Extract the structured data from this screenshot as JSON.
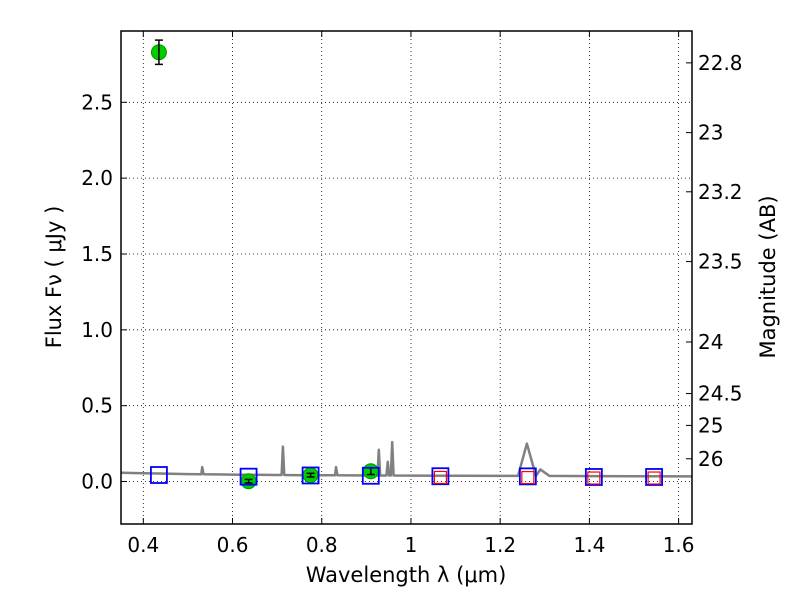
{
  "chart_data": {
    "type": "scatter",
    "xlabel": "Wavelength  λ (μm)",
    "ylabel": "Flux  Fν  ( μJy )",
    "ylabel_right": "Magnitude (AB)",
    "xlim": [
      0.35,
      1.63
    ],
    "ylim": [
      -0.28,
      2.97
    ],
    "grid": true,
    "x_ticks": [
      {
        "value": 0.4,
        "label": "0.4"
      },
      {
        "value": 0.6,
        "label": "0.6"
      },
      {
        "value": 0.8,
        "label": "0.8"
      },
      {
        "value": 1.0,
        "label": "1"
      },
      {
        "value": 1.2,
        "label": "1.2"
      },
      {
        "value": 1.4,
        "label": "1.4"
      },
      {
        "value": 1.6,
        "label": "1.6"
      }
    ],
    "y_ticks": [
      {
        "value": 0.0,
        "label": "0.0"
      },
      {
        "value": 0.5,
        "label": "0.5"
      },
      {
        "value": 1.0,
        "label": "1.0"
      },
      {
        "value": 1.5,
        "label": "1.5"
      },
      {
        "value": 2.0,
        "label": "2.0"
      },
      {
        "value": 2.5,
        "label": "2.5"
      }
    ],
    "right_ticks": [
      {
        "flux": 2.76,
        "label": "22.8"
      },
      {
        "flux": 2.3,
        "label": "23"
      },
      {
        "flux": 1.91,
        "label": "23.2"
      },
      {
        "flux": 1.45,
        "label": "23.5"
      },
      {
        "flux": 0.92,
        "label": "24"
      },
      {
        "flux": 0.58,
        "label": "24.5"
      },
      {
        "flux": 0.37,
        "label": "25"
      },
      {
        "flux": 0.15,
        "label": "26"
      }
    ],
    "series": [
      {
        "kind": "model_spectrum",
        "color": "#808080",
        "points": [
          [
            0.35,
            0.058
          ],
          [
            0.4,
            0.055
          ],
          [
            0.45,
            0.052
          ],
          [
            0.5,
            0.049
          ],
          [
            0.53,
            0.048
          ],
          [
            0.532,
            0.095
          ],
          [
            0.535,
            0.048
          ],
          [
            0.58,
            0.046
          ],
          [
            0.62,
            0.045
          ],
          [
            0.7,
            0.043
          ],
          [
            0.71,
            0.043
          ],
          [
            0.713,
            0.23
          ],
          [
            0.716,
            0.043
          ],
          [
            0.76,
            0.042
          ],
          [
            0.8,
            0.041
          ],
          [
            0.83,
            0.041
          ],
          [
            0.832,
            0.095
          ],
          [
            0.835,
            0.041
          ],
          [
            0.9,
            0.04
          ],
          [
            0.925,
            0.04
          ],
          [
            0.928,
            0.21
          ],
          [
            0.931,
            0.04
          ],
          [
            0.945,
            0.04
          ],
          [
            0.948,
            0.13
          ],
          [
            0.951,
            0.04
          ],
          [
            0.955,
            0.04
          ],
          [
            0.958,
            0.26
          ],
          [
            0.961,
            0.04
          ],
          [
            1.0,
            0.039
          ],
          [
            1.1,
            0.038
          ],
          [
            1.2,
            0.037
          ],
          [
            1.24,
            0.037
          ],
          [
            1.26,
            0.25
          ],
          [
            1.28,
            0.037
          ],
          [
            1.29,
            0.08
          ],
          [
            1.31,
            0.037
          ],
          [
            1.4,
            0.036
          ],
          [
            1.5,
            0.035
          ],
          [
            1.63,
            0.034
          ]
        ]
      },
      {
        "kind": "observed",
        "color": "#00cc00",
        "points": [
          {
            "x": 0.435,
            "y": 2.83,
            "err": 0.08
          },
          {
            "x": 0.636,
            "y": 0.002,
            "err": 0.012
          },
          {
            "x": 0.775,
            "y": 0.042,
            "err": 0.012
          },
          {
            "x": 0.91,
            "y": 0.068,
            "err": 0.022
          }
        ]
      },
      {
        "kind": "model_synthetic",
        "color": "#0000ff",
        "points": [
          {
            "x": 0.435,
            "y": 0.043
          },
          {
            "x": 0.636,
            "y": 0.032
          },
          {
            "x": 0.775,
            "y": 0.04
          },
          {
            "x": 0.91,
            "y": 0.038
          },
          {
            "x": 1.066,
            "y": 0.035
          },
          {
            "x": 1.262,
            "y": 0.034
          },
          {
            "x": 1.41,
            "y": 0.03
          },
          {
            "x": 1.545,
            "y": 0.03
          }
        ]
      },
      {
        "kind": "model_nir",
        "color": "#ff0000",
        "points": [
          {
            "x": 1.066,
            "y": 0.027
          },
          {
            "x": 1.262,
            "y": 0.026
          },
          {
            "x": 1.41,
            "y": 0.023
          },
          {
            "x": 1.545,
            "y": 0.023
          }
        ]
      }
    ]
  }
}
